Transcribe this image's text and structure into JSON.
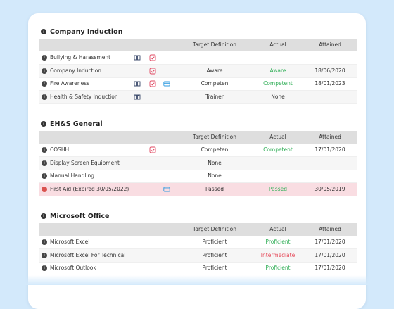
{
  "columns": {
    "target": "Target Definition",
    "actual": "Actual",
    "attained": "Attained"
  },
  "sections": [
    {
      "title": "Company Induction",
      "rows": [
        {
          "name": "Bullying & Harassment",
          "target": "",
          "actual": "",
          "attained": "",
          "book": true,
          "check": true,
          "card": false
        },
        {
          "name": "Company Induction",
          "target": "Aware",
          "actual": "Aware",
          "actual_color": "green",
          "attained": "18/06/2020",
          "book": false,
          "check": true,
          "card": false
        },
        {
          "name": "Fire Awareness",
          "target": "Competen",
          "actual": "Competent",
          "actual_color": "green",
          "attained": "18/01/2023",
          "book": true,
          "check": true,
          "card": true
        },
        {
          "name": "Health & Safety Induction",
          "target": "Trainer",
          "actual": "None",
          "actual_color": "",
          "attained": "",
          "book": true,
          "check": false,
          "card": false
        }
      ]
    },
    {
      "title": "EH&S General",
      "rows": [
        {
          "name": "COSHH",
          "target": "Competen",
          "actual": "Competent",
          "actual_color": "green",
          "attained": "17/01/2020",
          "book": false,
          "check": true,
          "card": false
        },
        {
          "name": "Display Screen Equipment",
          "target": "None",
          "actual": "",
          "attained": "",
          "book": false,
          "check": false,
          "card": false
        },
        {
          "name": "Manual Handling",
          "target": "None",
          "actual": "",
          "attained": "",
          "book": false,
          "check": false,
          "card": false
        },
        {
          "name": "First Aid (Expired 30/05/2022)",
          "target": "Passed",
          "actual": "Passed",
          "actual_color": "green",
          "attained": "30/05/2019",
          "book": false,
          "check": false,
          "card": true,
          "expired": true
        }
      ]
    },
    {
      "title": "Microsoft Office",
      "rows": [
        {
          "name": "Microsoft Excel",
          "target": "Proficient",
          "actual": "Proficient",
          "actual_color": "green",
          "attained": "17/01/2020",
          "book": false,
          "check": false,
          "card": false
        },
        {
          "name": "Microsoft Excel For Technical",
          "target": "Proficient",
          "actual": "Intermediate",
          "actual_color": "red",
          "attained": "17/01/2020",
          "book": false,
          "check": false,
          "card": false
        },
        {
          "name": "Microsoft Outlook",
          "target": "Proficient",
          "actual": "Proficient",
          "actual_color": "green",
          "attained": "17/01/2020",
          "book": false,
          "check": false,
          "card": false
        }
      ]
    }
  ]
}
